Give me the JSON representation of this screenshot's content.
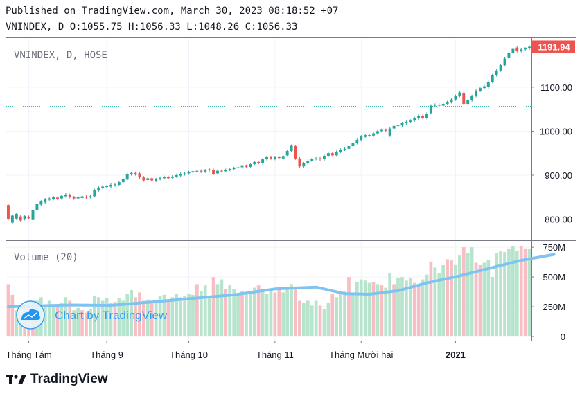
{
  "header": {
    "published_line": "Published on TradingView.com, March 30, 2023 08:18:52 +07",
    "ohlc_line": "VNINDEX, D O:1055.75 H:1056.33 L:1048.26 C:1056.33"
  },
  "chart_data": {
    "type": "candlestick",
    "price_pane": {
      "title": "VNINDEX, D, HOSE",
      "y_ticks": [
        "800.00",
        "900.00",
        "1000.00",
        "1100.00"
      ],
      "ylim": [
        752,
        1210
      ],
      "last_price_label": "1191.94",
      "reference_line": 1056.33,
      "candles": [
        {
          "o": 832,
          "c": 800
        },
        {
          "o": 792,
          "c": 808
        },
        {
          "o": 801,
          "c": 812
        },
        {
          "o": 806,
          "c": 797
        },
        {
          "o": 800,
          "c": 807
        },
        {
          "o": 805,
          "c": 802
        },
        {
          "o": 798,
          "c": 820
        },
        {
          "o": 820,
          "c": 835
        },
        {
          "o": 833,
          "c": 840
        },
        {
          "o": 838,
          "c": 845
        },
        {
          "o": 844,
          "c": 847
        },
        {
          "o": 846,
          "c": 850
        },
        {
          "o": 849,
          "c": 846
        },
        {
          "o": 847,
          "c": 853
        },
        {
          "o": 852,
          "c": 856
        },
        {
          "o": 855,
          "c": 850
        },
        {
          "o": 850,
          "c": 847
        },
        {
          "o": 847,
          "c": 850
        },
        {
          "o": 848,
          "c": 852
        },
        {
          "o": 851,
          "c": 849
        },
        {
          "o": 850,
          "c": 852
        },
        {
          "o": 852,
          "c": 866
        },
        {
          "o": 865,
          "c": 872
        },
        {
          "o": 871,
          "c": 874
        },
        {
          "o": 873,
          "c": 875
        },
        {
          "o": 874,
          "c": 878
        },
        {
          "o": 877,
          "c": 879
        },
        {
          "o": 878,
          "c": 884
        },
        {
          "o": 884,
          "c": 891
        },
        {
          "o": 890,
          "c": 903
        },
        {
          "o": 902,
          "c": 905
        },
        {
          "o": 905,
          "c": 902
        },
        {
          "o": 904,
          "c": 895
        },
        {
          "o": 895,
          "c": 888
        },
        {
          "o": 889,
          "c": 893
        },
        {
          "o": 893,
          "c": 888
        },
        {
          "o": 887,
          "c": 891
        },
        {
          "o": 891,
          "c": 894
        },
        {
          "o": 893,
          "c": 896
        },
        {
          "o": 896,
          "c": 893
        },
        {
          "o": 894,
          "c": 897
        },
        {
          "o": 897,
          "c": 900
        },
        {
          "o": 899,
          "c": 903
        },
        {
          "o": 902,
          "c": 904
        },
        {
          "o": 904,
          "c": 907
        },
        {
          "o": 906,
          "c": 909
        },
        {
          "o": 908,
          "c": 910
        },
        {
          "o": 910,
          "c": 908
        },
        {
          "o": 908,
          "c": 911
        },
        {
          "o": 911,
          "c": 913
        },
        {
          "o": 912,
          "c": 903
        },
        {
          "o": 904,
          "c": 910
        },
        {
          "o": 910,
          "c": 909
        },
        {
          "o": 909,
          "c": 912
        },
        {
          "o": 912,
          "c": 914
        },
        {
          "o": 914,
          "c": 916
        },
        {
          "o": 916,
          "c": 918
        },
        {
          "o": 918,
          "c": 921
        },
        {
          "o": 921,
          "c": 919
        },
        {
          "o": 919,
          "c": 925
        },
        {
          "o": 925,
          "c": 930
        },
        {
          "o": 930,
          "c": 928
        },
        {
          "o": 927,
          "c": 936
        },
        {
          "o": 936,
          "c": 941
        },
        {
          "o": 941,
          "c": 938
        },
        {
          "o": 937,
          "c": 941
        },
        {
          "o": 941,
          "c": 939
        },
        {
          "o": 938,
          "c": 942
        },
        {
          "o": 945,
          "c": 955
        },
        {
          "o": 955,
          "c": 967
        },
        {
          "o": 966,
          "c": 938
        },
        {
          "o": 938,
          "c": 920
        },
        {
          "o": 920,
          "c": 927
        },
        {
          "o": 927,
          "c": 933
        },
        {
          "o": 933,
          "c": 937
        },
        {
          "o": 937,
          "c": 938
        },
        {
          "o": 938,
          "c": 936
        },
        {
          "o": 936,
          "c": 944
        },
        {
          "o": 944,
          "c": 950
        },
        {
          "o": 950,
          "c": 945
        },
        {
          "o": 945,
          "c": 953
        },
        {
          "o": 953,
          "c": 958
        },
        {
          "o": 958,
          "c": 960
        },
        {
          "o": 960,
          "c": 966
        },
        {
          "o": 966,
          "c": 973
        },
        {
          "o": 973,
          "c": 980
        },
        {
          "o": 980,
          "c": 988
        },
        {
          "o": 987,
          "c": 991
        },
        {
          "o": 991,
          "c": 990
        },
        {
          "o": 990,
          "c": 995
        },
        {
          "o": 995,
          "c": 1000
        },
        {
          "o": 1000,
          "c": 1003
        },
        {
          "o": 1003,
          "c": 1001
        },
        {
          "o": 990,
          "c": 1006
        },
        {
          "o": 1006,
          "c": 1012
        },
        {
          "o": 1012,
          "c": 1013
        },
        {
          "o": 1013,
          "c": 1018
        },
        {
          "o": 1018,
          "c": 1021
        },
        {
          "o": 1021,
          "c": 1024
        },
        {
          "o": 1024,
          "c": 1030
        },
        {
          "o": 1029,
          "c": 1035
        },
        {
          "o": 1035,
          "c": 1030
        },
        {
          "o": 1030,
          "c": 1040
        },
        {
          "o": 1041,
          "c": 1058
        },
        {
          "o": 1058,
          "c": 1060
        },
        {
          "o": 1060,
          "c": 1058
        },
        {
          "o": 1058,
          "c": 1062
        },
        {
          "o": 1062,
          "c": 1066
        },
        {
          "o": 1066,
          "c": 1072
        },
        {
          "o": 1072,
          "c": 1080
        },
        {
          "o": 1080,
          "c": 1088
        },
        {
          "o": 1087,
          "c": 1062
        },
        {
          "o": 1062,
          "c": 1070
        },
        {
          "o": 1070,
          "c": 1080
        },
        {
          "o": 1080,
          "c": 1092
        },
        {
          "o": 1092,
          "c": 1098
        },
        {
          "o": 1098,
          "c": 1102
        },
        {
          "o": 1100,
          "c": 1112
        },
        {
          "o": 1112,
          "c": 1127
        },
        {
          "o": 1127,
          "c": 1138
        },
        {
          "o": 1138,
          "c": 1150
        },
        {
          "o": 1150,
          "c": 1165
        },
        {
          "o": 1166,
          "c": 1178
        },
        {
          "o": 1178,
          "c": 1187
        },
        {
          "o": 1190,
          "c": 1182
        },
        {
          "o": 1182,
          "c": 1186
        },
        {
          "o": 1186,
          "c": 1188
        },
        {
          "o": 1188,
          "c": 1192
        }
      ]
    },
    "volume_pane": {
      "title": "Volume (20)",
      "y_ticks": [
        "0",
        "250M",
        "500M",
        "750M"
      ],
      "ylim": [
        0,
        780
      ],
      "volumes": [
        {
          "v": 440,
          "up": false
        },
        {
          "v": 350,
          "up": false
        },
        {
          "v": 220,
          "up": true
        },
        {
          "v": 180,
          "up": true
        },
        {
          "v": 260,
          "up": false
        },
        {
          "v": 240,
          "up": false
        },
        {
          "v": 280,
          "up": false
        },
        {
          "v": 300,
          "up": true
        },
        {
          "v": 330,
          "up": true
        },
        {
          "v": 270,
          "up": true
        },
        {
          "v": 300,
          "up": true
        },
        {
          "v": 270,
          "up": true
        },
        {
          "v": 260,
          "up": false
        },
        {
          "v": 280,
          "up": true
        },
        {
          "v": 330,
          "up": true
        },
        {
          "v": 300,
          "up": false
        },
        {
          "v": 220,
          "up": true
        },
        {
          "v": 240,
          "up": true
        },
        {
          "v": 220,
          "up": false
        },
        {
          "v": 200,
          "up": false
        },
        {
          "v": 230,
          "up": true
        },
        {
          "v": 340,
          "up": true
        },
        {
          "v": 330,
          "up": true
        },
        {
          "v": 300,
          "up": true
        },
        {
          "v": 320,
          "up": true
        },
        {
          "v": 280,
          "up": true
        },
        {
          "v": 290,
          "up": false
        },
        {
          "v": 320,
          "up": true
        },
        {
          "v": 300,
          "up": true
        },
        {
          "v": 360,
          "up": true
        },
        {
          "v": 390,
          "up": true
        },
        {
          "v": 330,
          "up": false
        },
        {
          "v": 370,
          "up": false
        },
        {
          "v": 300,
          "up": false
        },
        {
          "v": 310,
          "up": true
        },
        {
          "v": 280,
          "up": false
        },
        {
          "v": 300,
          "up": true
        },
        {
          "v": 340,
          "up": true
        },
        {
          "v": 350,
          "up": true
        },
        {
          "v": 300,
          "up": false
        },
        {
          "v": 330,
          "up": true
        },
        {
          "v": 360,
          "up": true
        },
        {
          "v": 330,
          "up": true
        },
        {
          "v": 340,
          "up": true
        },
        {
          "v": 360,
          "up": true
        },
        {
          "v": 350,
          "up": true
        },
        {
          "v": 440,
          "up": false
        },
        {
          "v": 380,
          "up": true
        },
        {
          "v": 430,
          "up": true
        },
        {
          "v": 340,
          "up": true
        },
        {
          "v": 500,
          "up": false
        },
        {
          "v": 440,
          "up": true
        },
        {
          "v": 480,
          "up": true
        },
        {
          "v": 400,
          "up": false
        },
        {
          "v": 430,
          "up": true
        },
        {
          "v": 400,
          "up": true
        },
        {
          "v": 360,
          "up": true
        },
        {
          "v": 380,
          "up": false
        },
        {
          "v": 360,
          "up": true
        },
        {
          "v": 380,
          "up": true
        },
        {
          "v": 410,
          "up": true
        },
        {
          "v": 430,
          "up": false
        },
        {
          "v": 400,
          "up": true
        },
        {
          "v": 360,
          "up": true
        },
        {
          "v": 400,
          "up": true
        },
        {
          "v": 370,
          "up": false
        },
        {
          "v": 390,
          "up": false
        },
        {
          "v": 370,
          "up": true
        },
        {
          "v": 420,
          "up": true
        },
        {
          "v": 440,
          "up": true
        },
        {
          "v": 420,
          "up": false
        },
        {
          "v": 300,
          "up": false
        },
        {
          "v": 280,
          "up": true
        },
        {
          "v": 300,
          "up": true
        },
        {
          "v": 260,
          "up": true
        },
        {
          "v": 300,
          "up": true
        },
        {
          "v": 260,
          "up": false
        },
        {
          "v": 230,
          "up": true
        },
        {
          "v": 280,
          "up": true
        },
        {
          "v": 360,
          "up": false
        },
        {
          "v": 330,
          "up": true
        },
        {
          "v": 360,
          "up": true
        },
        {
          "v": 380,
          "up": true
        },
        {
          "v": 500,
          "up": false
        },
        {
          "v": 360,
          "up": true
        },
        {
          "v": 460,
          "up": true
        },
        {
          "v": 480,
          "up": true
        },
        {
          "v": 470,
          "up": true
        },
        {
          "v": 450,
          "up": true
        },
        {
          "v": 460,
          "up": false
        },
        {
          "v": 440,
          "up": true
        },
        {
          "v": 430,
          "up": false
        },
        {
          "v": 410,
          "up": true
        },
        {
          "v": 530,
          "up": true
        },
        {
          "v": 440,
          "up": false
        },
        {
          "v": 490,
          "up": true
        },
        {
          "v": 500,
          "up": true
        },
        {
          "v": 470,
          "up": true
        },
        {
          "v": 490,
          "up": true
        },
        {
          "v": 450,
          "up": false
        },
        {
          "v": 430,
          "up": false
        },
        {
          "v": 480,
          "up": true
        },
        {
          "v": 520,
          "up": true
        },
        {
          "v": 630,
          "up": false
        },
        {
          "v": 580,
          "up": true
        },
        {
          "v": 530,
          "up": true
        },
        {
          "v": 600,
          "up": true
        },
        {
          "v": 650,
          "up": false
        },
        {
          "v": 640,
          "up": false
        },
        {
          "v": 600,
          "up": true
        },
        {
          "v": 680,
          "up": true
        },
        {
          "v": 750,
          "up": false
        },
        {
          "v": 700,
          "up": true
        },
        {
          "v": 750,
          "up": true
        },
        {
          "v": 620,
          "up": false
        },
        {
          "v": 600,
          "up": false
        },
        {
          "v": 620,
          "up": true
        },
        {
          "v": 640,
          "up": true
        },
        {
          "v": 500,
          "up": true
        },
        {
          "v": 700,
          "up": true
        },
        {
          "v": 720,
          "up": true
        },
        {
          "v": 710,
          "up": true
        },
        {
          "v": 740,
          "up": true
        },
        {
          "v": 760,
          "up": true
        },
        {
          "v": 720,
          "up": true
        },
        {
          "v": 760,
          "up": false
        },
        {
          "v": 740,
          "up": false
        },
        {
          "v": 740,
          "up": true
        }
      ],
      "moving_average": [
        {
          "i": 0,
          "v": 250
        },
        {
          "i": 15,
          "v": 265
        },
        {
          "i": 25,
          "v": 262
        },
        {
          "i": 35,
          "v": 290
        },
        {
          "i": 45,
          "v": 320
        },
        {
          "i": 55,
          "v": 350
        },
        {
          "i": 65,
          "v": 400
        },
        {
          "i": 75,
          "v": 415
        },
        {
          "i": 82,
          "v": 360
        },
        {
          "i": 88,
          "v": 355
        },
        {
          "i": 95,
          "v": 385
        },
        {
          "i": 102,
          "v": 450
        },
        {
          "i": 110,
          "v": 510
        },
        {
          "i": 118,
          "v": 580
        },
        {
          "i": 125,
          "v": 640
        },
        {
          "i": 133,
          "v": 690
        }
      ]
    },
    "x_axis": {
      "labels": [
        {
          "text": "Tháng Tám",
          "i": 5,
          "bold": false
        },
        {
          "text": "Tháng 9",
          "i": 24,
          "bold": false
        },
        {
          "text": "Tháng 10",
          "i": 44,
          "bold": false
        },
        {
          "text": "Tháng 11",
          "i": 65,
          "bold": false
        },
        {
          "text": "Tháng Mười hai",
          "i": 86,
          "bold": false
        },
        {
          "text": "2021",
          "i": 109,
          "bold": true
        }
      ]
    },
    "colors": {
      "up": "#26a69a",
      "down": "#ef5350",
      "up_volume": "#b7e4cd",
      "down_volume": "#f7bfc4",
      "ma": "#7fc4f0",
      "grid": "#f0f3fa"
    }
  },
  "watermark": {
    "text": "Chart by TradingView"
  },
  "footer": {
    "brand": "TradingView"
  }
}
